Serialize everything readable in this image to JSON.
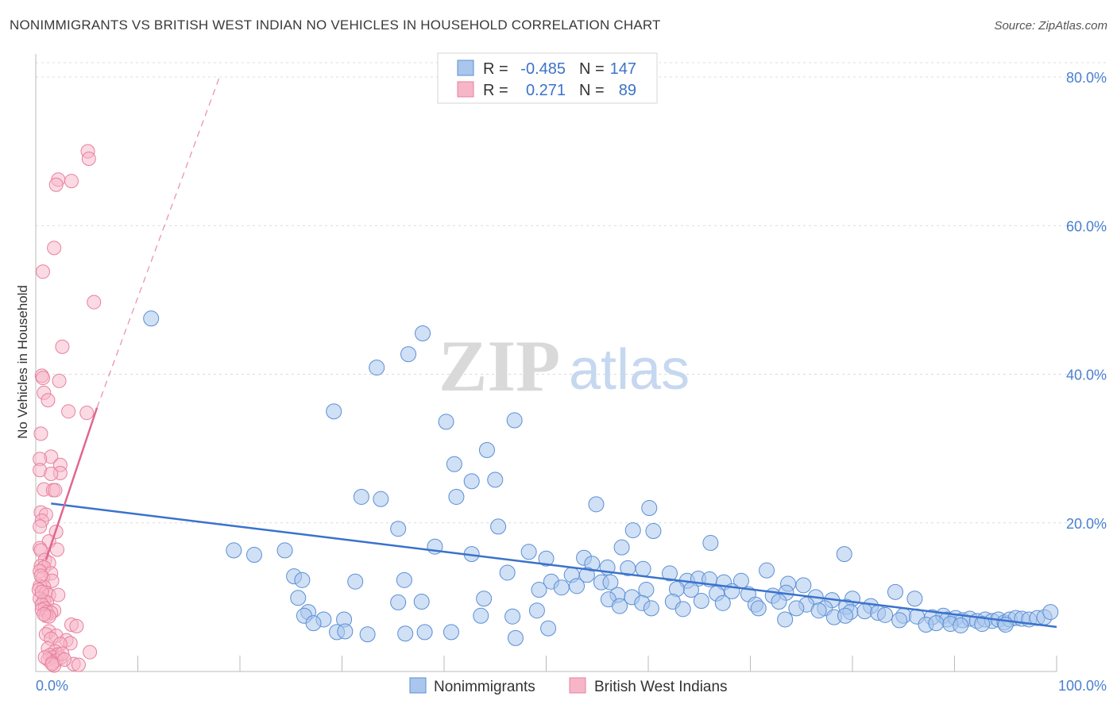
{
  "title": "NONIMMIGRANTS VS BRITISH WEST INDIAN NO VEHICLES IN HOUSEHOLD CORRELATION CHART",
  "source": "Source: ZipAtlas.com",
  "watermark": {
    "zip": "ZIP",
    "atlas": "atlas"
  },
  "colors": {
    "blue_fill": "#aac6ec",
    "blue_stroke": "#5b8fd6",
    "blue_line": "#3a72cc",
    "pink_fill": "#f7b6c8",
    "pink_stroke": "#e680a0",
    "pink_line": "#e0678f",
    "tick_text": "#4a7fcf",
    "grid": "#dcdcdc"
  },
  "legend": {
    "rows": [
      {
        "r_label": "R =",
        "r_value": "-0.485",
        "n_label": "N =",
        "n_value": "147"
      },
      {
        "r_label": "R =",
        "r_value": "0.271",
        "n_label": "N =",
        "n_value": "89"
      }
    ]
  },
  "bottom_legend": [
    "Nonimmigrants",
    "British West Indians"
  ],
  "chart_data": {
    "type": "scatter",
    "xlabel": "",
    "ylabel": "No Vehicles in Household",
    "xlim": [
      0,
      100
    ],
    "ylim": [
      0,
      82
    ],
    "x_tick_labels": [
      {
        "value": 0,
        "label": "0.0%"
      },
      {
        "value": 100,
        "label": "100.0%"
      }
    ],
    "y_tick_labels": [
      {
        "value": 20,
        "label": "20.0%"
      },
      {
        "value": 40,
        "label": "40.0%"
      },
      {
        "value": 60,
        "label": "60.0%"
      },
      {
        "value": 80,
        "label": "80.0%"
      }
    ],
    "grid": true,
    "legend_position": "top-center",
    "series": [
      {
        "name": "Nonimmigrants",
        "color": "#aac6ec",
        "trend": {
          "x0": 1.5,
          "y0": 22.6,
          "x1": 100,
          "y1": 6.0,
          "dashed": false
        },
        "points": [
          [
            11.3,
            47.5
          ],
          [
            37.9,
            45.5
          ],
          [
            33.4,
            40.9
          ],
          [
            36.5,
            42.7
          ],
          [
            29.2,
            35.0
          ],
          [
            40.2,
            33.6
          ],
          [
            46.9,
            33.8
          ],
          [
            44.2,
            29.8
          ],
          [
            41.0,
            27.9
          ],
          [
            42.7,
            25.6
          ],
          [
            45.0,
            25.8
          ],
          [
            41.2,
            23.5
          ],
          [
            33.8,
            23.2
          ],
          [
            31.9,
            23.5
          ],
          [
            54.9,
            22.5
          ],
          [
            60.1,
            22.0
          ],
          [
            35.5,
            19.2
          ],
          [
            45.3,
            19.5
          ],
          [
            58.5,
            19.0
          ],
          [
            60.5,
            18.9
          ],
          [
            66.1,
            17.3
          ],
          [
            79.2,
            15.8
          ],
          [
            19.4,
            16.3
          ],
          [
            21.4,
            15.7
          ],
          [
            24.4,
            16.3
          ],
          [
            39.1,
            16.8
          ],
          [
            42.7,
            15.8
          ],
          [
            48.3,
            16.1
          ],
          [
            50.0,
            15.2
          ],
          [
            53.7,
            15.3
          ],
          [
            57.4,
            16.7
          ],
          [
            54.5,
            14.5
          ],
          [
            56.0,
            14.0
          ],
          [
            58.0,
            13.9
          ],
          [
            59.5,
            13.8
          ],
          [
            46.2,
            13.3
          ],
          [
            52.5,
            13.0
          ],
          [
            62.1,
            13.2
          ],
          [
            25.3,
            12.8
          ],
          [
            26.1,
            12.3
          ],
          [
            31.3,
            12.1
          ],
          [
            36.1,
            12.3
          ],
          [
            50.5,
            12.1
          ],
          [
            54.0,
            13.0
          ],
          [
            55.4,
            12.0
          ],
          [
            56.3,
            12.0
          ],
          [
            63.8,
            12.2
          ],
          [
            64.9,
            12.5
          ],
          [
            66.0,
            12.4
          ],
          [
            67.4,
            12.0
          ],
          [
            69.1,
            12.2
          ],
          [
            71.6,
            13.6
          ],
          [
            73.7,
            11.8
          ],
          [
            75.2,
            11.6
          ],
          [
            49.3,
            11.0
          ],
          [
            51.5,
            11.3
          ],
          [
            53.0,
            11.5
          ],
          [
            57.0,
            10.3
          ],
          [
            59.8,
            11.0
          ],
          [
            62.8,
            11.1
          ],
          [
            64.2,
            11.0
          ],
          [
            66.7,
            10.5
          ],
          [
            68.2,
            10.8
          ],
          [
            69.8,
            10.4
          ],
          [
            72.2,
            10.2
          ],
          [
            73.5,
            10.6
          ],
          [
            76.4,
            10.0
          ],
          [
            78.0,
            9.6
          ],
          [
            80.0,
            9.8
          ],
          [
            84.2,
            10.7
          ],
          [
            86.1,
            9.8
          ],
          [
            25.7,
            9.9
          ],
          [
            35.5,
            9.3
          ],
          [
            37.8,
            9.4
          ],
          [
            43.9,
            9.8
          ],
          [
            56.1,
            9.7
          ],
          [
            58.4,
            10.0
          ],
          [
            59.4,
            9.2
          ],
          [
            62.4,
            9.4
          ],
          [
            65.2,
            9.5
          ],
          [
            67.3,
            9.2
          ],
          [
            70.5,
            9.0
          ],
          [
            72.8,
            9.4
          ],
          [
            75.5,
            9.0
          ],
          [
            77.3,
            8.5
          ],
          [
            79.4,
            8.7
          ],
          [
            81.8,
            8.8
          ],
          [
            26.7,
            8.0
          ],
          [
            49.1,
            8.2
          ],
          [
            57.2,
            8.8
          ],
          [
            60.3,
            8.5
          ],
          [
            63.4,
            8.4
          ],
          [
            70.8,
            8.5
          ],
          [
            74.5,
            8.5
          ],
          [
            76.7,
            8.2
          ],
          [
            79.8,
            8.0
          ],
          [
            81.2,
            8.1
          ],
          [
            82.5,
            7.9
          ],
          [
            83.2,
            7.6
          ],
          [
            85.0,
            7.5
          ],
          [
            86.3,
            7.4
          ],
          [
            87.8,
            7.3
          ],
          [
            88.9,
            7.5
          ],
          [
            89.3,
            7.0
          ],
          [
            90.1,
            7.2
          ],
          [
            90.8,
            6.9
          ],
          [
            91.5,
            7.1
          ],
          [
            92.2,
            6.8
          ],
          [
            93.0,
            7.0
          ],
          [
            93.7,
            6.8
          ],
          [
            94.3,
            7.0
          ],
          [
            94.9,
            6.6
          ],
          [
            95.4,
            7.0
          ],
          [
            96.0,
            7.2
          ],
          [
            96.6,
            7.1
          ],
          [
            97.3,
            7.0
          ],
          [
            98.1,
            7.2
          ],
          [
            98.8,
            7.3
          ],
          [
            99.4,
            8.0
          ],
          [
            26.3,
            7.5
          ],
          [
            28.2,
            7.0
          ],
          [
            30.2,
            7.0
          ],
          [
            43.6,
            7.5
          ],
          [
            46.7,
            7.4
          ],
          [
            73.4,
            7.0
          ],
          [
            78.2,
            7.3
          ],
          [
            79.3,
            7.5
          ],
          [
            84.6,
            6.9
          ],
          [
            87.2,
            6.3
          ],
          [
            88.2,
            6.5
          ],
          [
            89.6,
            6.4
          ],
          [
            92.7,
            6.4
          ],
          [
            95.0,
            6.3
          ],
          [
            27.2,
            6.5
          ],
          [
            29.5,
            5.3
          ],
          [
            30.3,
            5.4
          ],
          [
            36.2,
            5.1
          ],
          [
            38.1,
            5.3
          ],
          [
            40.7,
            5.3
          ],
          [
            47.0,
            4.5
          ],
          [
            50.2,
            5.8
          ],
          [
            32.5,
            5.0
          ],
          [
            90.6,
            6.2
          ]
        ]
      },
      {
        "name": "British West Indians",
        "color": "#f7b6c8",
        "trend": {
          "x0": 1.0,
          "y0": 15.0,
          "x1": 6.0,
          "y1": 35.5,
          "dash_x1": 18.0,
          "dash_y1": 80.0,
          "dashed_extension": true
        },
        "points": [
          [
            5.1,
            70.0
          ],
          [
            5.2,
            69.0
          ],
          [
            2.2,
            66.2
          ],
          [
            3.5,
            66.0
          ],
          [
            2.0,
            65.5
          ],
          [
            1.8,
            57.0
          ],
          [
            0.7,
            53.8
          ],
          [
            5.7,
            49.7
          ],
          [
            2.6,
            43.7
          ],
          [
            0.6,
            39.8
          ],
          [
            0.7,
            39.5
          ],
          [
            2.3,
            39.1
          ],
          [
            0.8,
            37.5
          ],
          [
            1.2,
            36.5
          ],
          [
            3.2,
            35.0
          ],
          [
            5.0,
            34.8
          ],
          [
            0.5,
            32.0
          ],
          [
            1.5,
            28.9
          ],
          [
            0.4,
            28.6
          ],
          [
            2.4,
            27.8
          ],
          [
            0.4,
            27.1
          ],
          [
            2.4,
            26.7
          ],
          [
            1.5,
            26.6
          ],
          [
            0.8,
            24.5
          ],
          [
            1.7,
            24.4
          ],
          [
            1.9,
            24.4
          ],
          [
            0.5,
            21.4
          ],
          [
            1.0,
            21.1
          ],
          [
            0.6,
            20.3
          ],
          [
            0.4,
            19.5
          ],
          [
            2.0,
            18.8
          ],
          [
            1.3,
            17.5
          ],
          [
            0.4,
            16.6
          ],
          [
            2.1,
            16.4
          ],
          [
            0.5,
            16.3
          ],
          [
            0.9,
            15.0
          ],
          [
            0.5,
            14.2
          ],
          [
            1.3,
            14.6
          ],
          [
            0.8,
            14.0
          ],
          [
            0.4,
            13.5
          ],
          [
            1.5,
            13.2
          ],
          [
            0.7,
            12.6
          ],
          [
            1.6,
            12.2
          ],
          [
            0.4,
            11.5
          ],
          [
            0.8,
            11.4
          ],
          [
            0.3,
            11.0
          ],
          [
            1.0,
            10.6
          ],
          [
            1.3,
            10.3
          ],
          [
            2.2,
            10.3
          ],
          [
            0.4,
            9.8
          ],
          [
            0.8,
            9.5
          ],
          [
            1.1,
            9.3
          ],
          [
            0.6,
            9.0
          ],
          [
            0.9,
            8.5
          ],
          [
            1.8,
            8.2
          ],
          [
            0.6,
            8.3
          ],
          [
            1.1,
            8.0
          ],
          [
            1.5,
            7.9
          ],
          [
            1.0,
            7.5
          ],
          [
            1.3,
            7.4
          ],
          [
            0.8,
            7.7
          ],
          [
            3.5,
            6.3
          ],
          [
            4.0,
            6.1
          ],
          [
            1.3,
            5.4
          ],
          [
            1.0,
            5.0
          ],
          [
            2.0,
            4.8
          ],
          [
            1.5,
            4.4
          ],
          [
            3.0,
            4.2
          ],
          [
            3.4,
            3.8
          ],
          [
            2.4,
            3.7
          ],
          [
            1.2,
            3.1
          ],
          [
            1.9,
            2.7
          ],
          [
            1.4,
            2.2
          ],
          [
            2.2,
            2.3
          ],
          [
            1.7,
            1.9
          ],
          [
            2.4,
            1.8
          ],
          [
            1.2,
            1.6
          ],
          [
            2.0,
            1.5
          ],
          [
            1.6,
            1.2
          ],
          [
            3.7,
            1.0
          ],
          [
            4.2,
            0.9
          ],
          [
            1.8,
            0.8
          ],
          [
            5.3,
            2.6
          ],
          [
            2.6,
            2.4
          ],
          [
            0.9,
            1.9
          ],
          [
            1.6,
            1.0
          ],
          [
            2.8,
            1.6
          ],
          [
            0.5,
            12.9
          ],
          [
            0.6,
            10.7
          ]
        ]
      }
    ]
  }
}
